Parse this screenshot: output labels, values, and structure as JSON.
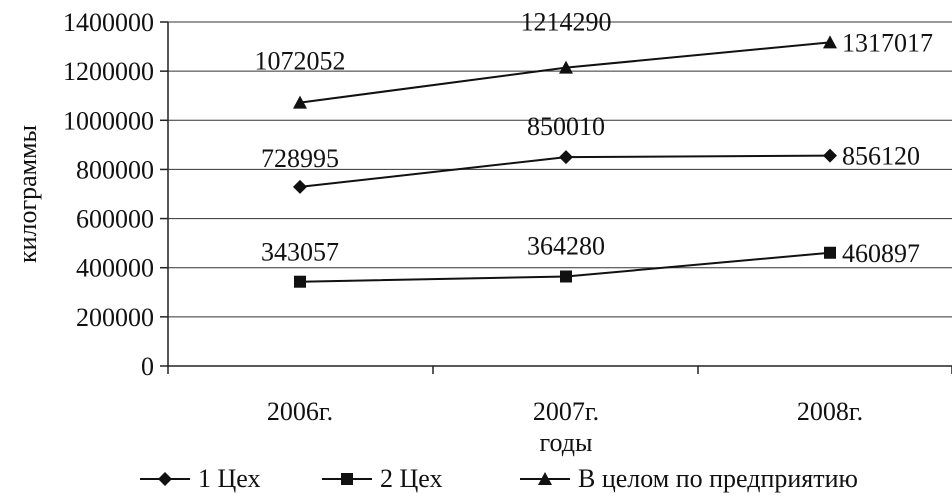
{
  "chart_data": {
    "type": "line",
    "categories": [
      "2006г.",
      "2007г.",
      "2008г."
    ],
    "series": [
      {
        "name": "1 Цех",
        "marker": "diamond",
        "values": [
          728995,
          850010,
          856120
        ],
        "labels": [
          "728995",
          "850010",
          "856120"
        ]
      },
      {
        "name": "2 Цех",
        "marker": "square",
        "values": [
          343057,
          364280,
          460897
        ],
        "labels": [
          "343057",
          "364280",
          "460897"
        ]
      },
      {
        "name": "В целом по предприятию",
        "marker": "triangle",
        "values": [
          1072052,
          1214290,
          1317017
        ],
        "labels": [
          "1072052",
          "1214290",
          "1317017"
        ]
      }
    ],
    "xlabel": "годы",
    "ylabel": "килограммы",
    "ylim": [
      0,
      1400000
    ],
    "yticks": [
      0,
      200000,
      400000,
      600000,
      800000,
      1000000,
      1200000,
      1400000
    ],
    "ytick_labels": [
      "0",
      "200000",
      "400000",
      "600000",
      "800000",
      "1000000",
      "1200000",
      "1400000"
    ],
    "grid": "horizontal",
    "legend_position": "bottom",
    "line_color": "#111111"
  }
}
